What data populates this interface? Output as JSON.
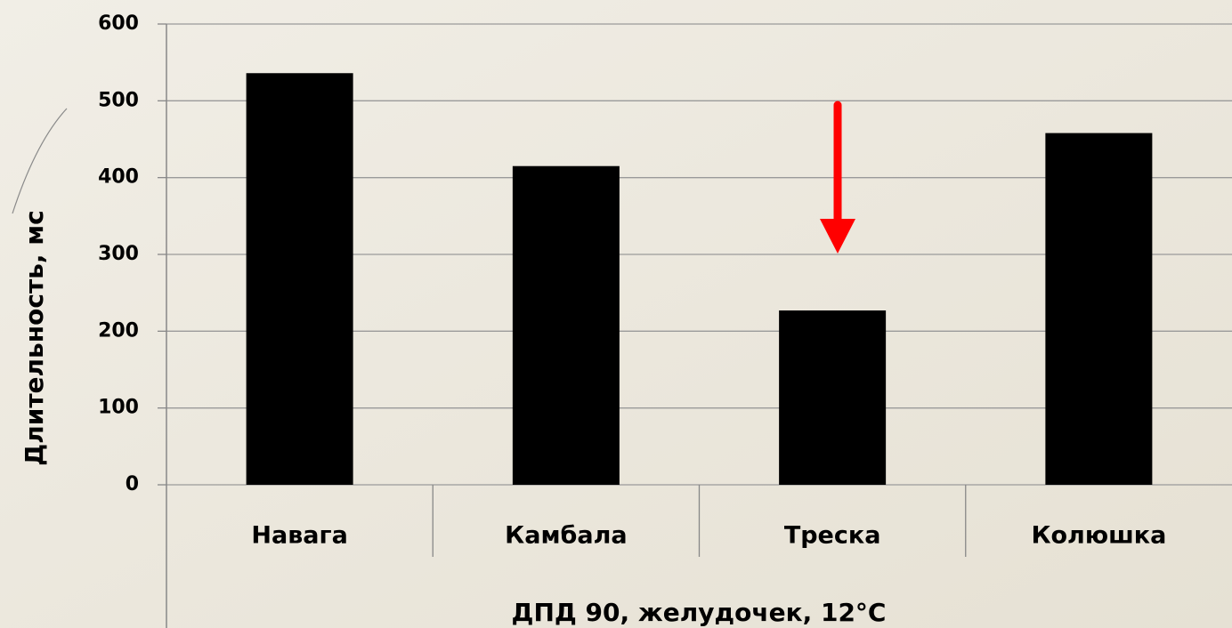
{
  "chart_data": {
    "type": "bar",
    "categories": [
      "Навага",
      "Камбала",
      "Треска",
      "Колюшка"
    ],
    "values": [
      536,
      415,
      227,
      458
    ],
    "color": "#000000",
    "ylim": [
      0,
      600
    ],
    "yticks": [
      0,
      100,
      200,
      300,
      400,
      500,
      600
    ],
    "grid": true,
    "y_label": "Длительность, мс",
    "x_label": "ДПД 90, желудочек, 12°С"
  }
}
